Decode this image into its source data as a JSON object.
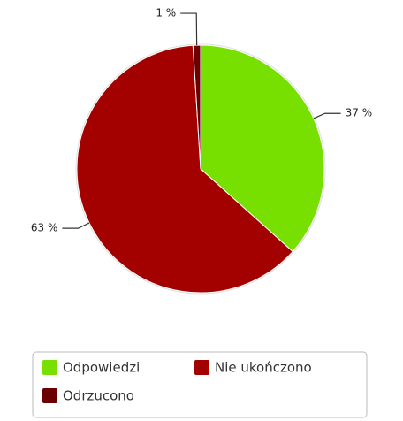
{
  "chart_data": {
    "type": "pie",
    "categories": [
      "Odpowiedzi",
      "Nie ukończono",
      "Odrzucono"
    ],
    "values": [
      37,
      63,
      1
    ],
    "value_labels": [
      "37 %",
      "63 %",
      "1 %"
    ],
    "colors": [
      "#77e000",
      "#a30000",
      "#6a0000"
    ],
    "legend": "bottom"
  }
}
